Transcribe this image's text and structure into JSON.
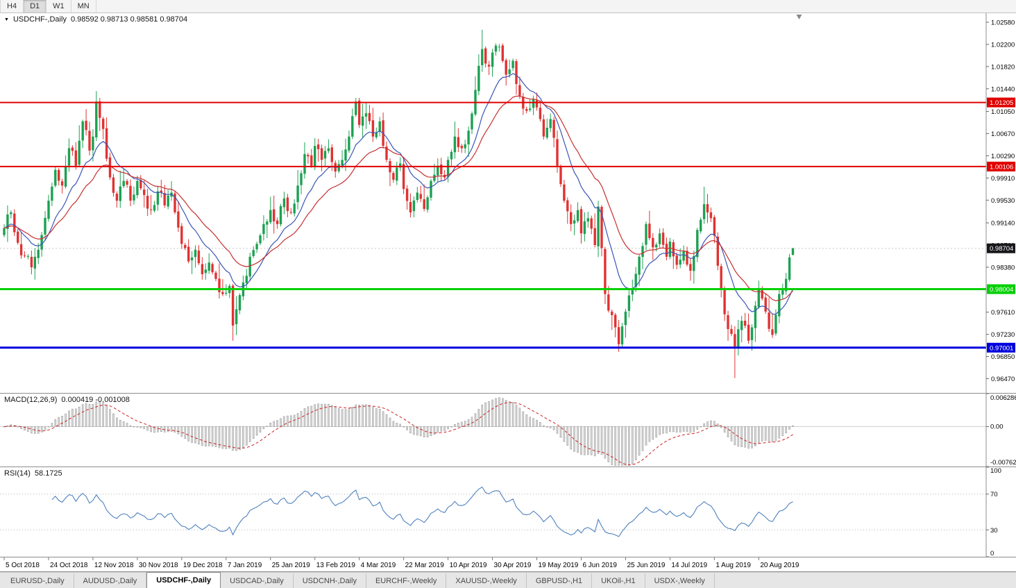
{
  "toolbar": {
    "timeframes": [
      {
        "label": "H4",
        "active": false
      },
      {
        "label": "D1",
        "active": true
      },
      {
        "label": "W1",
        "active": false
      },
      {
        "label": "MN",
        "active": false
      }
    ]
  },
  "chart": {
    "title": "USDCHF-,Daily",
    "ohlc_text": "0.98592 0.98713 0.98581 0.98704",
    "dropdown_icon": "▼"
  },
  "macd": {
    "label": "MACD(12,26,9)",
    "values_text": "0.000419 -0.001008"
  },
  "rsi": {
    "label": "RSI(14)",
    "value_text": "58.1725"
  },
  "tabs": [
    {
      "label": "EURUSD-,Daily",
      "active": false
    },
    {
      "label": "AUDUSD-,Daily",
      "active": false
    },
    {
      "label": "USDCHF-,Daily",
      "active": true
    },
    {
      "label": "USDCAD-,Daily",
      "active": false
    },
    {
      "label": "USDCNH-,Daily",
      "active": false
    },
    {
      "label": "EURCHF-,Weekly",
      "active": false
    },
    {
      "label": "XAUUSD-,Weekly",
      "active": false
    },
    {
      "label": "GBPUSD-,H1",
      "active": false
    },
    {
      "label": "UKOil-,H1",
      "active": false
    },
    {
      "label": "USDX-,Weekly",
      "active": false
    }
  ],
  "chart_data": {
    "type": "candlestick",
    "symbol": "USDCHF-",
    "timeframe": "Daily",
    "num_candles": 232,
    "last_ohlc": {
      "open": 0.98592,
      "high": 0.98713,
      "low": 0.98581,
      "close": 0.98704
    },
    "price_range": {
      "top": 1.02735,
      "bottom": 0.96225
    },
    "price_axis_labels": [
      1.0258,
      1.022,
      1.0182,
      1.0144,
      1.0105,
      1.0067,
      1.0029,
      0.9991,
      0.9953,
      0.9914,
      0.9876,
      0.9838,
      0.9761,
      0.9723,
      0.9685,
      0.9647
    ],
    "current_price": {
      "value": 0.98704,
      "label": "0.98704",
      "tag_color": "#17171c"
    },
    "hlines": [
      {
        "price": 1.01205,
        "label": "1.01205",
        "color": "#e00000",
        "width": 2
      },
      {
        "price": 1.00106,
        "label": "1.00106",
        "color": "#e00000",
        "width": 2
      },
      {
        "price": 0.98004,
        "label": "0.98004",
        "color": "#00d000",
        "width": 3
      },
      {
        "price": 0.97001,
        "label": "0.97001",
        "color": "#0000dd",
        "width": 3
      }
    ],
    "date_labels": [
      "5 Oct 2018",
      "24 Oct 2018",
      "12 Nov 2018",
      "30 Nov 2018",
      "19 Dec 2018",
      "7 Jan 2019",
      "25 Jan 2019",
      "13 Feb 2019",
      "4 Mar 2019",
      "22 Mar 2019",
      "10 Apr 2019",
      "30 Apr 2019",
      "19 May 2019",
      "6 Jun 2019",
      "25 Jun 2019",
      "14 Jul 2019",
      "1 Aug 2019",
      "20 Aug 2019"
    ],
    "candles_per_label": 13,
    "up_color": "#1ca152",
    "down_color": "#e03232",
    "ma_fast_color": "#3a55b4",
    "ma_slow_color": "#c62f2f",
    "anchors": [
      [
        0,
        0.9905
      ],
      [
        2,
        0.9932
      ],
      [
        4,
        0.988
      ],
      [
        6,
        0.9858
      ],
      [
        8,
        0.9838
      ],
      [
        10,
        0.9868
      ],
      [
        13,
        0.9952
      ],
      [
        15,
        1.0005
      ],
      [
        17,
        0.9978
      ],
      [
        19,
        1.0042
      ],
      [
        21,
        1.0012
      ],
      [
        23,
        1.0088
      ],
      [
        25,
        1.0038
      ],
      [
        26,
        1.0062
      ],
      [
        27,
        1.0122
      ],
      [
        29,
        1.0075
      ],
      [
        31,
        0.9992
      ],
      [
        33,
        0.9952
      ],
      [
        35,
        0.9986
      ],
      [
        37,
        0.9952
      ],
      [
        39,
        0.9986
      ],
      [
        41,
        0.9962
      ],
      [
        43,
        0.9936
      ],
      [
        45,
        0.9968
      ],
      [
        47,
        0.9944
      ],
      [
        49,
        0.9966
      ],
      [
        51,
        0.9906
      ],
      [
        52,
        0.9878
      ],
      [
        54,
        0.9848
      ],
      [
        56,
        0.9868
      ],
      [
        58,
        0.9826
      ],
      [
        60,
        0.9846
      ],
      [
        62,
        0.9818
      ],
      [
        64,
        0.9792
      ],
      [
        66,
        0.9806
      ],
      [
        67,
        0.9738
      ],
      [
        68,
        0.9766
      ],
      [
        70,
        0.9812
      ],
      [
        72,
        0.9856
      ],
      [
        74,
        0.9878
      ],
      [
        76,
        0.9912
      ],
      [
        78,
        0.9936
      ],
      [
        80,
        0.9912
      ],
      [
        82,
        0.9956
      ],
      [
        84,
        0.9932
      ],
      [
        86,
        0.9978
      ],
      [
        88,
        1.0032
      ],
      [
        90,
        1.0012
      ],
      [
        91,
        1.0046
      ],
      [
        93,
        1.0022
      ],
      [
        95,
        1.0042
      ],
      [
        97,
        1.0002
      ],
      [
        99,
        1.0022
      ],
      [
        101,
        1.0062
      ],
      [
        103,
        1.0122
      ],
      [
        104,
        1.0082
      ],
      [
        106,
        1.0102
      ],
      [
        108,
        1.0062
      ],
      [
        110,
        1.0088
      ],
      [
        112,
        1.0022
      ],
      [
        114,
        0.9988
      ],
      [
        116,
        1.0016
      ],
      [
        117,
        0.9972
      ],
      [
        119,
        0.9932
      ],
      [
        121,
        0.9966
      ],
      [
        123,
        0.9938
      ],
      [
        125,
        0.9986
      ],
      [
        127,
        1.0012
      ],
      [
        129,
        0.9992
      ],
      [
        130,
        1.0022
      ],
      [
        132,
        1.0062
      ],
      [
        134,
        1.0042
      ],
      [
        136,
        1.0072
      ],
      [
        138,
        1.0142
      ],
      [
        140,
        1.0212
      ],
      [
        142,
        1.0182
      ],
      [
        143,
        1.0206
      ],
      [
        145,
        1.0216
      ],
      [
        147,
        1.0168
      ],
      [
        149,
        1.0192
      ],
      [
        151,
        1.0132
      ],
      [
        153,
        1.0106
      ],
      [
        155,
        1.0126
      ],
      [
        156,
        1.0112
      ],
      [
        158,
        1.0062
      ],
      [
        160,
        1.0092
      ],
      [
        162,
        1.0012
      ],
      [
        164,
        0.9952
      ],
      [
        166,
        0.9912
      ],
      [
        168,
        0.9936
      ],
      [
        169,
        0.9896
      ],
      [
        171,
        0.9922
      ],
      [
        173,
        0.9876
      ],
      [
        174,
        0.9942
      ],
      [
        176,
        0.9792
      ],
      [
        178,
        0.9756
      ],
      [
        180,
        0.9706
      ],
      [
        182,
        0.9762
      ],
      [
        184,
        0.9802
      ],
      [
        186,
        0.9856
      ],
      [
        188,
        0.9912
      ],
      [
        190,
        0.9872
      ],
      [
        192,
        0.9896
      ],
      [
        194,
        0.9856
      ],
      [
        195,
        0.9882
      ],
      [
        197,
        0.9842
      ],
      [
        199,
        0.9866
      ],
      [
        201,
        0.9832
      ],
      [
        203,
        0.9902
      ],
      [
        205,
        0.9946
      ],
      [
        207,
        0.9922
      ],
      [
        208,
        0.9892
      ],
      [
        210,
        0.9802
      ],
      [
        212,
        0.9732
      ],
      [
        214,
        0.9702
      ],
      [
        216,
        0.9746
      ],
      [
        218,
        0.9712
      ],
      [
        220,
        0.9772
      ],
      [
        221,
        0.9802
      ],
      [
        223,
        0.9762
      ],
      [
        225,
        0.9722
      ],
      [
        227,
        0.9792
      ],
      [
        229,
        0.9818
      ],
      [
        231,
        0.98704
      ]
    ],
    "low_overrides": {
      "67": 0.9712,
      "180": 0.9693,
      "214": 0.9648
    },
    "high_overrides": {
      "27": 1.014,
      "140": 1.0245,
      "205": 0.9976
    },
    "macd": {
      "scale_top": 0.006286,
      "scale_bottom": -0.00762,
      "axis_labels": {
        "top": "0.006286",
        "zero": "0.00",
        "bottom": "-0.00762"
      },
      "histogram_fill": "#dcdcdc",
      "histogram_stroke": "#9a9a9a",
      "signal_color": "#cc2222"
    },
    "rsi": {
      "levels": [
        70,
        30
      ],
      "axis_labels": [
        {
          "v": 100,
          "t": "100"
        },
        {
          "v": 70,
          "t": "70"
        },
        {
          "v": 30,
          "t": "30"
        },
        {
          "v": 0,
          "t": "0"
        }
      ],
      "line_color": "#4f81bd"
    }
  }
}
